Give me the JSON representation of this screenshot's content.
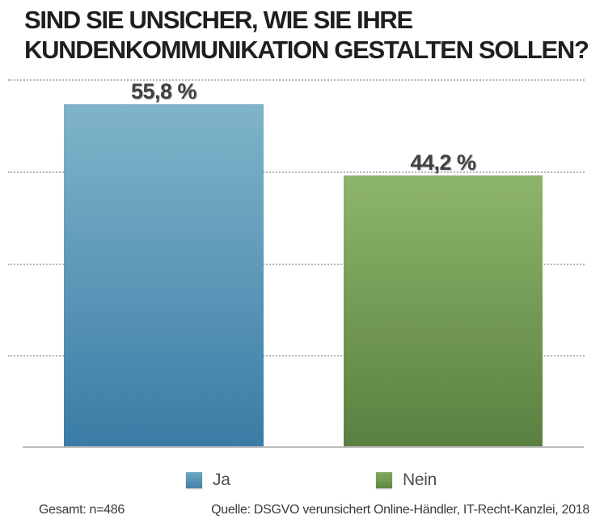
{
  "chart_data": {
    "type": "bar",
    "title": "SIND SIE UNSICHER, WIE SIE IHRE\nKUNDENKOMMUNIKATION GESTALTEN SOLLEN?",
    "title_lines": [
      "SIND SIE UNSICHER, WIE SIE IHRE",
      "KUNDENKOMMUNIKATION GESTALTEN SOLLEN?"
    ],
    "categories": [
      "Ja",
      "Nein"
    ],
    "values": [
      55.8,
      44.2
    ],
    "value_labels": [
      "55,8 %",
      "44,2 %"
    ],
    "series_colors": [
      {
        "name": "Ja",
        "top": "#7fb4c9",
        "bottom": "#3a7ca6"
      },
      {
        "name": "Nein",
        "top": "#8db56a",
        "bottom": "#5a8040"
      }
    ],
    "xlabel": "",
    "ylabel": "",
    "ylim": [
      0,
      60
    ],
    "grid_step": 15,
    "grid_style": "dotted horizontal lines, no tick labels",
    "legend_position": "bottom",
    "legend": [
      {
        "label": "Ja",
        "color_top": "#6aa7c2",
        "color_bottom": "#4581a9"
      },
      {
        "label": "Nein",
        "color_top": "#82ab5e",
        "color_bottom": "#5e8643"
      }
    ]
  },
  "footer": {
    "left": "Gesamt: n=486",
    "right": "Quelle: DSGVO verunsichert Online-Händler, IT-Recht-Kanzlei, 2018"
  }
}
